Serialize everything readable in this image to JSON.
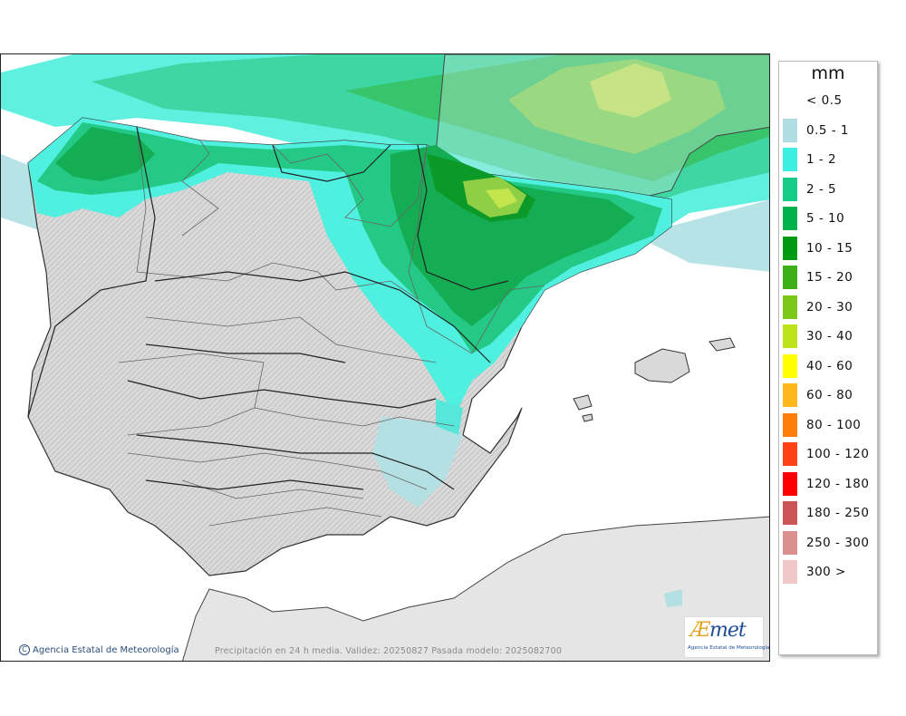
{
  "map": {
    "title": "Precipitación en 24 h media",
    "region": "Península Ibérica y Baleares"
  },
  "legend": {
    "unit_label": "mm",
    "items": [
      {
        "label": "< 0.5",
        "color": "#ffffff"
      },
      {
        "label": "0.5 - 1",
        "color": "#b0dde2"
      },
      {
        "label": "1 - 2",
        "color": "#3cefe0"
      },
      {
        "label": "2 - 5",
        "color": "#14cc86"
      },
      {
        "label": "5 - 10",
        "color": "#00b24b"
      },
      {
        "label": "10 - 15",
        "color": "#009a12"
      },
      {
        "label": "15 - 20",
        "color": "#3caf16"
      },
      {
        "label": "20 - 30",
        "color": "#7cc81a"
      },
      {
        "label": "30 - 40",
        "color": "#bde31a"
      },
      {
        "label": "40 - 60",
        "color": "#ffff00"
      },
      {
        "label": "60 - 80",
        "color": "#ffb91a"
      },
      {
        "label": "80 - 100",
        "color": "#ff7d0a"
      },
      {
        "label": "100 - 120",
        "color": "#ff4114"
      },
      {
        "label": "120 - 180",
        "color": "#ff0000"
      },
      {
        "label": "180 - 250",
        "color": "#cd5454"
      },
      {
        "label": "250 - 300",
        "color": "#db8f8f"
      },
      {
        "label": "300 >",
        "color": "#f0c8c8"
      }
    ]
  },
  "footer": {
    "copyright_symbol": "C",
    "agency": "Agencia Estatal de Meteorología",
    "caption": "Precipitación en 24 h media. Validez: 20250827 Pasada modelo: 2025082700"
  },
  "logo": {
    "ae": "Æ",
    "rest": "met",
    "subtitle": "Agencia Estatal de Meteorología"
  },
  "colors": {
    "land": "#d4d4d4",
    "foreign_land": "#e2e2e2",
    "sea": "#ffffff",
    "borders": "#333333"
  }
}
